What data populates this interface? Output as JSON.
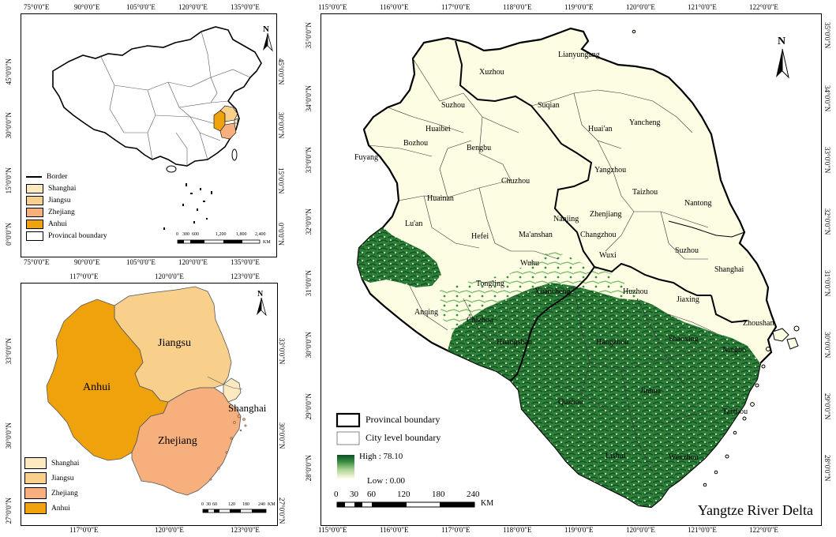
{
  "china_map": {
    "lon_ticks": [
      "75°0'0\"E",
      "90°0'0\"E",
      "105°0'0\"E",
      "120°0'0\"E",
      "135°0'0\"E"
    ],
    "lat_ticks_left": [
      "45°0'0\"N",
      "30°0'0\"N",
      "15°0'0\"N",
      "0°0'0\"N"
    ],
    "lat_ticks_right": [
      "45°0'0\"N",
      "30°0'0\"N",
      "15°0'0\"N",
      "0°0'0\"N"
    ],
    "north": "N",
    "legend": [
      {
        "label": "Border",
        "swatch": "line",
        "color": "#000000"
      },
      {
        "label": "Shanghai",
        "color": "#fde9bf"
      },
      {
        "label": "Jiangsu",
        "color": "#f8d08c"
      },
      {
        "label": "Zhejiang",
        "color": "#f7b07d"
      },
      {
        "label": "Anhui",
        "color": "#f0a20c"
      },
      {
        "label": "Provincal boundary",
        "color": "#ffffff"
      }
    ],
    "scale_ticks": [
      "0",
      "300",
      "600",
      "1,200",
      "1,800",
      "2,400"
    ],
    "scale_unit": "KM"
  },
  "yrd_small_map": {
    "lon_ticks_top": [
      "117°0'0\"E",
      "120°0'0\"E",
      "123°0'0\"E"
    ],
    "lon_ticks_bottom": [
      "117°0'0\"E",
      "120°0'0\"E",
      "123°0'0\"E"
    ],
    "lat_ticks_left": [
      "33°0'0\"N",
      "30°0'0\"N",
      "27°0'0\"N"
    ],
    "lat_ticks_right": [
      "33°0'0\"N",
      "30°0'0\"N",
      "27°0'0\"N"
    ],
    "north": "N",
    "provinces": {
      "anhui": "Anhui",
      "jiangsu": "Jiangsu",
      "shanghai": "Shanghai",
      "zhejiang": "Zhejiang"
    },
    "legend": [
      {
        "label": "Shanghai",
        "color": "#fde9bf"
      },
      {
        "label": "Jiangsu",
        "color": "#f8d08c"
      },
      {
        "label": "Zhejiang",
        "color": "#f7b07d"
      },
      {
        "label": "Anhui",
        "color": "#f0a20c"
      }
    ],
    "scale_ticks": [
      "0",
      "30",
      "60",
      "120",
      "180",
      "240"
    ],
    "scale_unit": "KM"
  },
  "main_map": {
    "lon_ticks_top": [
      "115°0'0\"E",
      "116°0'0\"E",
      "117°0'0\"E",
      "118°0'0\"E",
      "119°0'0\"E",
      "120°0'0\"E",
      "121°0'0\"E",
      "122°0'0\"E"
    ],
    "lon_ticks_bottom": [
      "115°0'0\"E",
      "116°0'0\"E",
      "117°0'0\"E",
      "118°0'0\"E",
      "119°0'0\"E",
      "120°0'0\"E",
      "121°0'0\"E",
      "122°0'0\"E"
    ],
    "lat_ticks_left": [
      "35°0'0\"N",
      "34°0'0\"N",
      "33°0'0\"N",
      "32°0'0\"N",
      "31°0'0\"N",
      "30°0'0\"N",
      "29°0'0\"N",
      "28°0'0\"N"
    ],
    "lat_ticks_right": [
      "35°0'0\"N",
      "34°0'0\"N",
      "33°0'0\"N",
      "32°0'0\"N",
      "31°0'0\"N",
      "30°0'0\"N",
      "29°0'0\"N",
      "28°0'0\"N"
    ],
    "north": "N",
    "cities": [
      "Lianyungang",
      "Xuzhou",
      "Suzhou",
      "Suqian",
      "Huaibei",
      "Yancheng",
      "Huai'an",
      "Bozhou",
      "Bengbu",
      "Fuyang",
      "Yangzhou",
      "Chuzhou",
      "Taizhou",
      "Huainan",
      "Nantong",
      "Nanjing",
      "Zhenjiang",
      "Lu'an",
      "Hefei",
      "Ma'anshan",
      "Changzhou",
      "Wuxi",
      "Suzhou",
      "Wuhu",
      "Shanghai",
      "Tongling",
      "Xuancheng",
      "Huzhou",
      "Jiaxing",
      "Anqing",
      "Chizhou",
      "Zhoushan",
      "Hangzhou",
      "Shaoxing",
      "Ningbo",
      "Huangshan",
      "Jinhua",
      "Quzhou",
      "Taizhou",
      "Lishui",
      "Wenzhou"
    ],
    "legend": {
      "provincial": "Provincal boundary",
      "city": "City level boundary",
      "high": "High : 78.10",
      "low": "Low : 0.00",
      "ramp": [
        "#0b4f23",
        "#2f8a3e",
        "#6bb86a",
        "#b6dba4",
        "#e9f3cf",
        "#fffde5"
      ]
    },
    "scale_ticks": [
      "0",
      "30",
      "60",
      "120",
      "180",
      "240"
    ],
    "scale_unit": "KM",
    "title": "Yangtze River Delta",
    "colors": {
      "base": "#fdfde4",
      "veg_dark": "#1f6b31",
      "veg_mid": "#4d9a4b",
      "veg_light": "#a7d08f"
    }
  }
}
